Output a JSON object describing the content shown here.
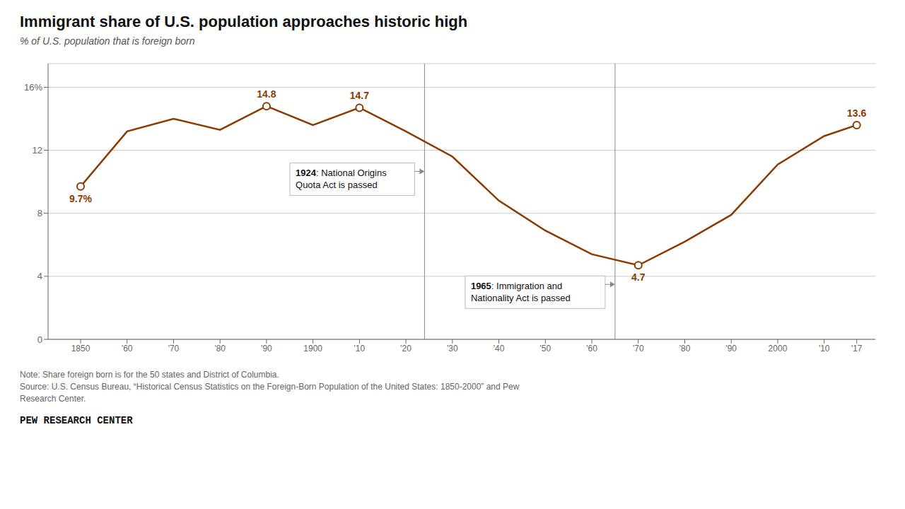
{
  "chart_data": {
    "type": "line",
    "title": "Immigrant share of U.S. population approaches historic high",
    "subtitle": "% of U.S. population that is foreign born",
    "x": [
      1850,
      1860,
      1870,
      1880,
      1890,
      1900,
      1910,
      1920,
      1930,
      1940,
      1950,
      1960,
      1970,
      1980,
      1990,
      2000,
      2010,
      2017
    ],
    "values": [
      9.7,
      13.2,
      14.0,
      13.3,
      14.8,
      13.6,
      14.7,
      13.2,
      11.6,
      8.8,
      6.9,
      5.4,
      4.7,
      6.2,
      7.9,
      11.1,
      12.9,
      13.6
    ],
    "value_labels": [
      "9.7%",
      null,
      null,
      null,
      "14.8",
      null,
      "14.7",
      null,
      null,
      null,
      null,
      null,
      "4.7",
      null,
      null,
      null,
      null,
      "13.6"
    ],
    "color": "#8B3A00",
    "xlim": [
      1843,
      2021
    ],
    "xticks": [
      1850,
      {
        "value": 1860,
        "label": "'60"
      },
      {
        "value": 1870,
        "label": "'70"
      },
      {
        "value": 1880,
        "label": "'80"
      },
      {
        "value": 1890,
        "label": "'90"
      },
      1900,
      {
        "value": 1910,
        "label": "'10"
      },
      {
        "value": 1920,
        "label": "'20"
      },
      {
        "value": 1930,
        "label": "'30"
      },
      {
        "value": 1940,
        "label": "'40"
      },
      {
        "value": 1950,
        "label": "'50"
      },
      {
        "value": 1960,
        "label": "'60"
      },
      {
        "value": 1970,
        "label": "'70"
      },
      {
        "value": 1980,
        "label": "'80"
      },
      {
        "value": 1990,
        "label": "'90"
      },
      2000,
      {
        "value": 2010,
        "label": "'10"
      },
      {
        "value": 2017,
        "label": "'17"
      }
    ],
    "ylim": [
      0,
      17.5
    ],
    "yticks": [
      0,
      4,
      8,
      12,
      {
        "value": 16,
        "label": "16%"
      }
    ],
    "grid": true,
    "annotations": [
      {
        "x": 1924,
        "label": "1924",
        "text": ": National Origins\nQuota Act is passed"
      },
      {
        "x": 1965,
        "label": "1965",
        "text": ": Immigration and\nNationality Act is passed"
      }
    ],
    "notes": [
      "Note: Share foreign born is for the 50 states and District of Columbia.",
      "Source: U.S. Census Bureau, “Historical Census Statistics on the Foreign-Born Population of the United States: 1850-2000” and Pew",
      "Research Center."
    ],
    "footer": "PEW RESEARCH CENTER"
  }
}
